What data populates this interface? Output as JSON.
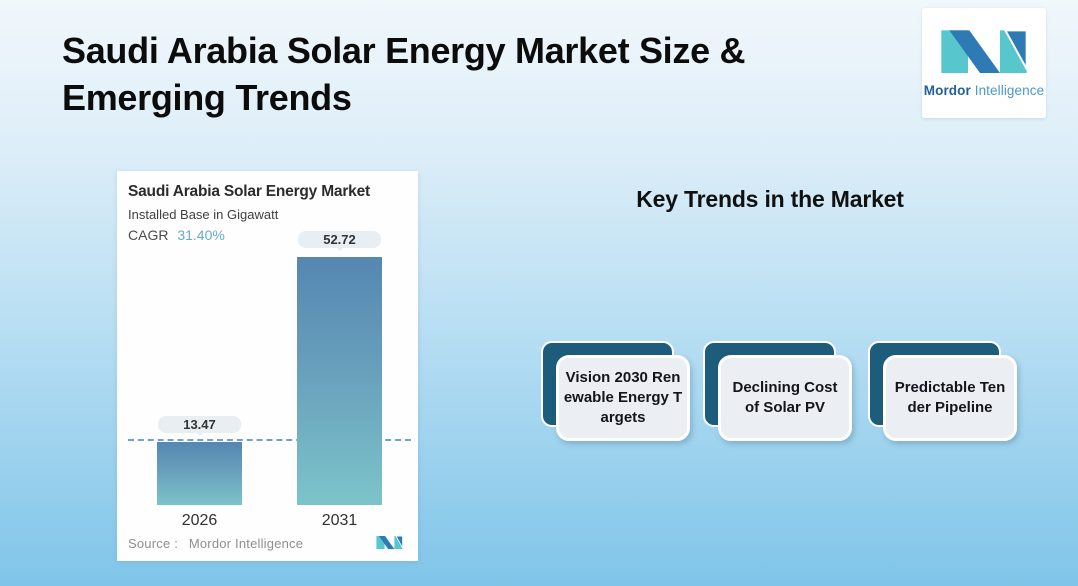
{
  "page_title": "Saudi Arabia Solar Energy Market Size & Emerging Trends",
  "brand": {
    "name_primary": "Mordor",
    "name_secondary": "Intelligence"
  },
  "chart_card": {
    "title": "Saudi Arabia Solar Energy Market",
    "subtitle": "Installed Base in Gigawatt",
    "cagr_label": "CAGR",
    "cagr_value": "31.40%",
    "source_label": "Source :",
    "source_value": "Mordor Intelligence"
  },
  "chart_data": {
    "type": "bar",
    "title": "Saudi Arabia Solar Energy Market",
    "subtitle": "Installed Base in Gigawatt",
    "unit": "Gigawatt",
    "cagr_percent": 31.4,
    "categories": [
      "2026",
      "2031"
    ],
    "values": [
      13.47,
      52.72
    ],
    "bar_labels": [
      "13.47",
      "52.72"
    ],
    "reference_line_value": 13.47,
    "ylim": [
      0,
      52.72
    ],
    "legend": false,
    "gridlines": false,
    "bar_gradient_top": "#5587b1",
    "bar_gradient_bottom": "#7cc4ca",
    "reference_line_style": "dashed",
    "source": "Mordor Intelligence"
  },
  "trends": {
    "heading": "Key Trends in the Market",
    "cards": [
      {
        "label": "Vision 2030 Renewable Energy Targets",
        "lines": [
          "Vision 2030 Ren",
          "ewable Energy T",
          "argets"
        ]
      },
      {
        "label": "Declining Cost of Solar PV",
        "lines": [
          "Declining Cost",
          "of Solar PV"
        ]
      },
      {
        "label": "Predictable Tender Pipeline",
        "lines": [
          "Predictable Ten",
          "der Pipeline"
        ]
      }
    ]
  },
  "colors": {
    "background_top": "#f1f7fb",
    "background_bottom": "#7fc5e9",
    "trend_card_back": "#1e5c7c",
    "trend_card_front": "#ebeff4",
    "cagr_value": "#67a9cf",
    "dashed_line": "#6fa0d2",
    "badge_bg": "#e8eef1",
    "logo_blue": "#2d7ab4",
    "logo_teal": "#57c7cd"
  }
}
